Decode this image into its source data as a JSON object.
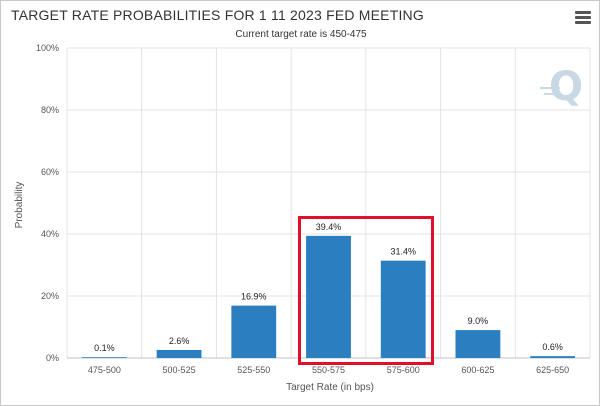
{
  "header": {
    "title": "TARGET RATE PROBABILITIES FOR 1 11 2023 FED MEETING",
    "subtitle": "Current target rate is 450-475"
  },
  "menu": {
    "icon": "hamburger-menu-icon"
  },
  "watermark": {
    "icon": "cme-q-logo-icon"
  },
  "colors": {
    "bar": "#2b7fc0",
    "highlight": "#e0102b",
    "grid": "#e3e3e3"
  },
  "chart_data": {
    "type": "bar",
    "title": "TARGET RATE PROBABILITIES FOR 1 11 2023 FED MEETING",
    "subtitle": "Current target rate is 450-475",
    "xlabel": "Target Rate (in bps)",
    "ylabel": "Probability",
    "categories": [
      "475-500",
      "500-525",
      "525-550",
      "550-575",
      "575-600",
      "600-625",
      "625-650"
    ],
    "values": [
      0.1,
      2.6,
      16.9,
      39.4,
      31.4,
      9.0,
      0.6
    ],
    "data_labels": [
      "0.1%",
      "2.6%",
      "16.9%",
      "39.4%",
      "31.4%",
      "9.0%",
      "0.6%"
    ],
    "ylim": [
      0,
      100
    ],
    "yticks": [
      0,
      20,
      40,
      60,
      80,
      100
    ],
    "ytick_labels": [
      "0%",
      "20%",
      "40%",
      "60%",
      "80%",
      "100%"
    ],
    "grid": true,
    "highlighted_categories": [
      "550-575",
      "575-600"
    ]
  }
}
